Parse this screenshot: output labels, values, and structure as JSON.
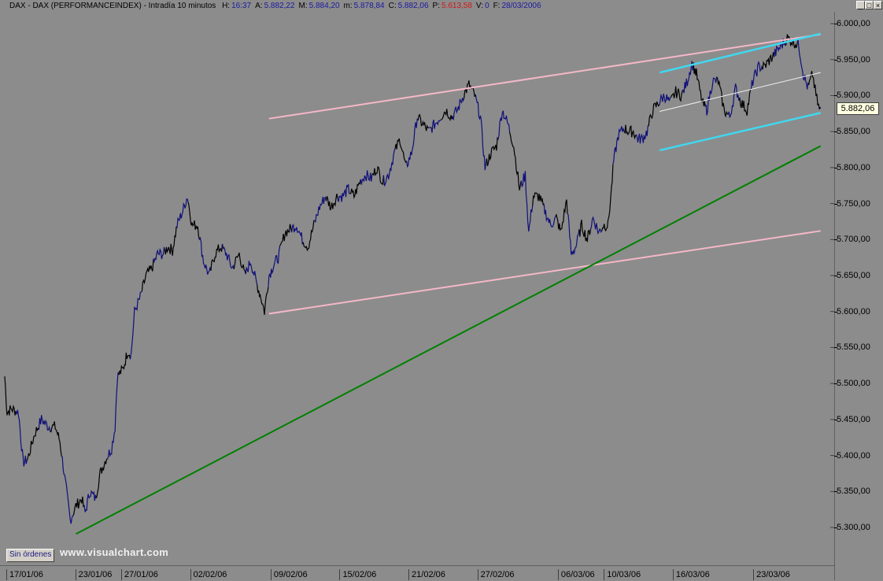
{
  "header": {
    "name": "DAX - DAX (PERFORMANCEINDEX) - Intradía 10 minutos",
    "fields": [
      {
        "k": "H:",
        "v": "16:37"
      },
      {
        "k": "A:",
        "v": "5.882,22"
      },
      {
        "k": "M:",
        "v": "5.884,20"
      },
      {
        "k": "m:",
        "v": "5.878,84"
      },
      {
        "k": "C:",
        "v": "5.882,06"
      },
      {
        "k": "P:",
        "v": "5.613,58",
        "color": "#d01818"
      },
      {
        "k": "V:",
        "v": "0"
      },
      {
        "k": "F:",
        "v": "28/03/2006"
      }
    ]
  },
  "window_controls": [
    "_",
    "□",
    "×"
  ],
  "last_price": "5.882,06",
  "orders_button": "Sin órdenes",
  "watermark": "www.visualchart.com",
  "colors": {
    "background": "#8c8c8c",
    "series_a": "#000000",
    "series_b": "#10107a",
    "channel_outer": "#f4b8c8",
    "channel_inner": "#40d8f0",
    "midline": "#f0f0f0",
    "trend": "#008000"
  },
  "chart_data": {
    "type": "line",
    "title": "DAX - DAX (PERFORMANCEINDEX)",
    "xlabel": "",
    "ylabel": "",
    "ylim": [
      5250,
      6012
    ],
    "yticks": [
      5300,
      5350,
      5400,
      5450,
      5500,
      5550,
      5600,
      5650,
      5700,
      5750,
      5800,
      5850,
      5900,
      5950,
      6000
    ],
    "ytick_labels": [
      "5.300,00",
      "5.350,00",
      "5.400,00",
      "5.450,00",
      "5.500,00",
      "5.550,00",
      "5.600,00",
      "5.650,00",
      "5.700,00",
      "5.750,00",
      "5.800,00",
      "5.850,00",
      "5.900,00",
      "5.950,00",
      "6.000,00"
    ],
    "xticks": [
      {
        "label": "17/01/06",
        "day": 0
      },
      {
        "label": "23/01/06",
        "day": 6
      },
      {
        "label": "27/01/06",
        "day": 10
      },
      {
        "label": "02/02/06",
        "day": 16
      },
      {
        "label": "09/02/06",
        "day": 23
      },
      {
        "label": "15/02/06",
        "day": 29
      },
      {
        "label": "21/02/06",
        "day": 35
      },
      {
        "label": "27/02/06",
        "day": 41
      },
      {
        "label": "06/03/06",
        "day": 48
      },
      {
        "label": "10/03/06",
        "day": 52
      },
      {
        "label": "16/03/06",
        "day": 58
      },
      {
        "label": "23/03/06",
        "day": 65
      }
    ],
    "xlim": [
      0,
      71.5
    ],
    "series": [
      {
        "points": [
          [
            0,
            5510
          ],
          [
            0.2,
            5460
          ],
          [
            0.6,
            5465
          ],
          [
            1.2,
            5460
          ],
          [
            1.6,
            5390
          ],
          [
            2.0,
            5395
          ],
          [
            2.6,
            5430
          ],
          [
            3.2,
            5450
          ],
          [
            3.8,
            5440
          ],
          [
            4.4,
            5440
          ],
          [
            4.8,
            5420
          ],
          [
            5.3,
            5360
          ],
          [
            5.7,
            5310
          ],
          [
            6.2,
            5330
          ],
          [
            6.7,
            5340
          ],
          [
            7.0,
            5320
          ],
          [
            7.4,
            5350
          ],
          [
            7.9,
            5340
          ],
          [
            8.3,
            5375
          ],
          [
            8.8,
            5395
          ],
          [
            9.3,
            5410
          ],
          [
            9.6,
            5440
          ],
          [
            9.8,
            5510
          ],
          [
            10.3,
            5520
          ],
          [
            10.7,
            5545
          ],
          [
            11.0,
            5540
          ],
          [
            11.3,
            5600
          ],
          [
            11.8,
            5620
          ],
          [
            12.3,
            5650
          ],
          [
            12.8,
            5660
          ],
          [
            13.3,
            5680
          ],
          [
            13.8,
            5680
          ],
          [
            14.2,
            5690
          ],
          [
            14.6,
            5685
          ],
          [
            15.0,
            5720
          ],
          [
            15.5,
            5740
          ],
          [
            15.9,
            5760
          ],
          [
            16.3,
            5720
          ],
          [
            16.8,
            5720
          ],
          [
            17.3,
            5670
          ],
          [
            17.8,
            5650
          ],
          [
            18.3,
            5680
          ],
          [
            18.8,
            5690
          ],
          [
            19.3,
            5680
          ],
          [
            19.8,
            5660
          ],
          [
            20.4,
            5680
          ],
          [
            20.9,
            5650
          ],
          [
            21.4,
            5670
          ],
          [
            21.9,
            5640
          ],
          [
            22.3,
            5620
          ],
          [
            22.6,
            5600
          ],
          [
            23.0,
            5650
          ],
          [
            23.4,
            5665
          ],
          [
            23.8,
            5675
          ],
          [
            24.4,
            5710
          ],
          [
            24.9,
            5715
          ],
          [
            25.4,
            5720
          ],
          [
            25.9,
            5700
          ],
          [
            26.4,
            5690
          ],
          [
            26.9,
            5720
          ],
          [
            27.4,
            5745
          ],
          [
            27.9,
            5760
          ],
          [
            28.4,
            5745
          ],
          [
            28.9,
            5760
          ],
          [
            29.4,
            5760
          ],
          [
            29.9,
            5770
          ],
          [
            30.4,
            5760
          ],
          [
            30.9,
            5780
          ],
          [
            31.4,
            5790
          ],
          [
            31.9,
            5785
          ],
          [
            32.4,
            5800
          ],
          [
            32.9,
            5780
          ],
          [
            33.4,
            5790
          ],
          [
            33.9,
            5820
          ],
          [
            34.4,
            5840
          ],
          [
            34.9,
            5800
          ],
          [
            35.4,
            5820
          ],
          [
            35.9,
            5870
          ],
          [
            36.4,
            5860
          ],
          [
            36.9,
            5850
          ],
          [
            37.4,
            5860
          ],
          [
            37.9,
            5870
          ],
          [
            38.4,
            5880
          ],
          [
            38.9,
            5870
          ],
          [
            39.4,
            5880
          ],
          [
            39.9,
            5900
          ],
          [
            40.4,
            5915
          ],
          [
            40.9,
            5900
          ],
          [
            41.4,
            5870
          ],
          [
            41.8,
            5800
          ],
          [
            42.3,
            5820
          ],
          [
            42.8,
            5830
          ],
          [
            43.3,
            5880
          ],
          [
            43.8,
            5860
          ],
          [
            44.3,
            5830
          ],
          [
            44.8,
            5770
          ],
          [
            45.3,
            5790
          ],
          [
            45.6,
            5710
          ],
          [
            46.0,
            5760
          ],
          [
            46.5,
            5760
          ],
          [
            47.0,
            5740
          ],
          [
            47.5,
            5720
          ],
          [
            48.0,
            5730
          ],
          [
            48.4,
            5710
          ],
          [
            48.9,
            5755
          ],
          [
            49.3,
            5680
          ],
          [
            49.7,
            5690
          ],
          [
            50.2,
            5720
          ],
          [
            50.7,
            5700
          ],
          [
            51.2,
            5730
          ],
          [
            51.7,
            5710
          ],
          [
            52.1,
            5720
          ],
          [
            52.5,
            5720
          ],
          [
            52.8,
            5770
          ],
          [
            53.0,
            5810
          ],
          [
            53.4,
            5845
          ],
          [
            53.9,
            5855
          ],
          [
            54.3,
            5850
          ],
          [
            54.7,
            5850
          ],
          [
            55.1,
            5840
          ],
          [
            55.5,
            5840
          ],
          [
            55.9,
            5850
          ],
          [
            56.4,
            5880
          ],
          [
            56.9,
            5890
          ],
          [
            57.4,
            5900
          ],
          [
            57.9,
            5890
          ],
          [
            58.4,
            5905
          ],
          [
            58.9,
            5900
          ],
          [
            59.4,
            5920
          ],
          [
            59.8,
            5945
          ],
          [
            60.2,
            5930
          ],
          [
            60.7,
            5890
          ],
          [
            61.1,
            5880
          ],
          [
            61.6,
            5920
          ],
          [
            62.1,
            5920
          ],
          [
            62.6,
            5880
          ],
          [
            63.1,
            5870
          ],
          [
            63.6,
            5910
          ],
          [
            64.1,
            5890
          ],
          [
            64.6,
            5880
          ],
          [
            65.1,
            5920
          ],
          [
            65.6,
            5940
          ],
          [
            66.1,
            5940
          ],
          [
            66.6,
            5950
          ],
          [
            67.1,
            5960
          ],
          [
            67.6,
            5970
          ],
          [
            68.1,
            5980
          ],
          [
            68.6,
            5975
          ],
          [
            69.1,
            5970
          ],
          [
            69.5,
            5930
          ],
          [
            69.9,
            5910
          ],
          [
            70.3,
            5930
          ],
          [
            70.6,
            5900
          ],
          [
            70.9,
            5880
          ],
          [
            71.0,
            5882
          ]
        ]
      }
    ],
    "lines": [
      {
        "role": "channel_outer_upper",
        "x": [
          23.0,
          71.0
        ],
        "y": [
          5868,
          5985
        ]
      },
      {
        "role": "channel_outer_lower",
        "x": [
          23.0,
          71.0
        ],
        "y": [
          5597,
          5712
        ]
      },
      {
        "role": "channel_inner_upper",
        "x": [
          57.0,
          71.0
        ],
        "y": [
          5932,
          5986
        ]
      },
      {
        "role": "channel_inner_lower",
        "x": [
          57.0,
          71.0
        ],
        "y": [
          5824,
          5876
        ]
      },
      {
        "role": "channel_mid",
        "x": [
          57.0,
          71.0
        ],
        "y": [
          5878,
          5932
        ]
      },
      {
        "role": "trend",
        "x": [
          6.2,
          71.0
        ],
        "y": [
          5291,
          5830
        ]
      }
    ]
  }
}
